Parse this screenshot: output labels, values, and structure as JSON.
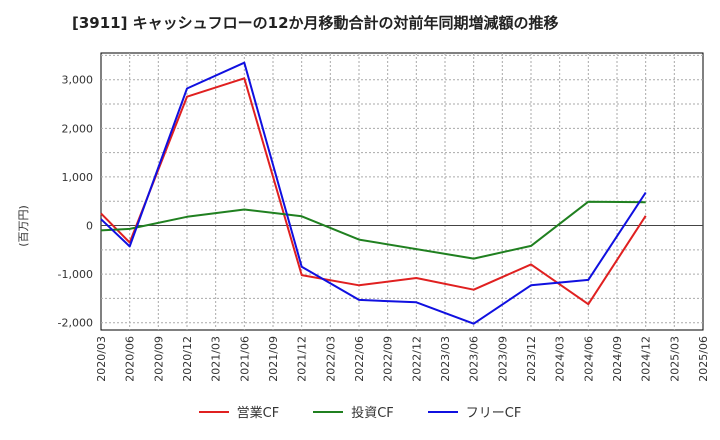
{
  "chart_data": {
    "type": "line",
    "title": "[3911]  キャッシュフローの12か月移動合計の対前年同期増減額の推移",
    "xlabel": "",
    "ylabel": "(百万円)",
    "ylim": [
      -2150,
      3550
    ],
    "yticks": [
      -2000,
      -1000,
      0,
      1000,
      2000,
      3000
    ],
    "ytick_labels": [
      "-2,000",
      "-1,000",
      "0",
      "1,000",
      "2,000",
      "3,000"
    ],
    "x": [
      "2020/03",
      "2020/06",
      "2020/09",
      "2020/12",
      "2021/03",
      "2021/06",
      "2021/09",
      "2021/12",
      "2022/03",
      "2022/06",
      "2022/09",
      "2022/12",
      "2023/03",
      "2023/06",
      "2023/09",
      "2023/12",
      "2024/03",
      "2024/06",
      "2024/09",
      "2024/12",
      "2025/03",
      "2025/06"
    ],
    "grid": true,
    "legend_position": "bottom",
    "series": [
      {
        "name": "営業CF",
        "color": "#e02020",
        "values": [
          250,
          -350,
          null,
          2650,
          null,
          3030,
          null,
          -1020,
          null,
          -1230,
          null,
          -1080,
          null,
          -1320,
          null,
          -800,
          null,
          -1620,
          null,
          200,
          null,
          null
        ]
      },
      {
        "name": "投資CF",
        "color": "#208020",
        "values": [
          -100,
          -70,
          null,
          180,
          null,
          330,
          null,
          190,
          null,
          -290,
          null,
          null,
          null,
          -680,
          null,
          -420,
          null,
          490,
          null,
          480,
          null,
          null
        ]
      },
      {
        "name": "フリーCF",
        "color": "#1010e0",
        "values": [
          130,
          -430,
          null,
          2820,
          null,
          3350,
          null,
          -850,
          null,
          -1530,
          null,
          -1580,
          null,
          -2020,
          null,
          -1230,
          null,
          -1120,
          null,
          680,
          null,
          null
        ]
      }
    ]
  }
}
